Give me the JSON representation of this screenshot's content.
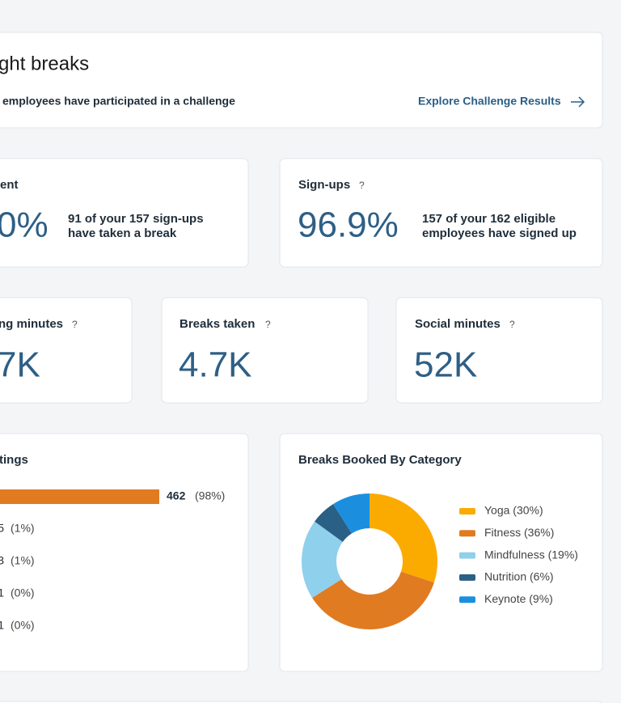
{
  "header": {
    "logo": "ght breaks",
    "subtitle": "employees have participated in a challenge",
    "link": "Explore Challenge Results"
  },
  "engagement": {
    "title": "ent",
    "value": "0%",
    "desc": [
      "91 of your 157 sign-ups",
      "have taken a break"
    ]
  },
  "signups": {
    "title": "Sign-ups",
    "help": "?",
    "value": "96.9%",
    "desc": [
      "157 of your 162 eligible",
      "employees have signed up"
    ]
  },
  "metrics": [
    {
      "title": "ng minutes",
      "help": "?",
      "value": "7K"
    },
    {
      "title": "Breaks taken",
      "help": "?",
      "value": "4.7K"
    },
    {
      "title": "Social minutes",
      "help": "?",
      "value": "52K"
    }
  ],
  "ratings": {
    "title": "tings",
    "values": [
      462,
      5,
      3,
      1,
      1
    ],
    "pct_labels": [
      "(98%)",
      "(1%)",
      "(1%)",
      "(0%)",
      "(0%)"
    ],
    "color": "#e07b22"
  },
  "category_chart": {
    "type": "pie",
    "title": "Breaks Booked By Category",
    "values": [
      30,
      36,
      19,
      6,
      9
    ],
    "labels": [
      "Yoga (30%)",
      "Fitness (36%)",
      "Mindfulness (19%)",
      "Nutrition (6%)",
      "Keynote (9%)"
    ],
    "colors": [
      "#fbab00",
      "#e07b22",
      "#8fd0ec",
      "#2a5f86",
      "#1b8fde"
    ]
  }
}
